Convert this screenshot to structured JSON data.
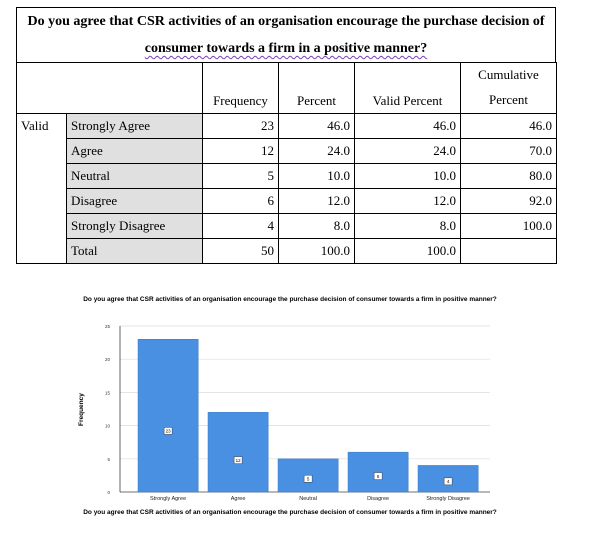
{
  "title": {
    "line1": "Do you agree that CSR activities of an organisation encourage the purchase decision of",
    "line2": "consumer towards a firm in a positive manner?"
  },
  "table": {
    "headers": {
      "frequency": "Frequency",
      "percent": "Percent",
      "valid_percent": "Valid Percent",
      "cumulative_line1": "Cumulative",
      "cumulative_line2": "Percent"
    },
    "valid_label": "Valid",
    "rows": [
      {
        "label": "Strongly Agree",
        "frequency": "23",
        "percent": "46.0",
        "valid_percent": "46.0",
        "cumulative": "46.0"
      },
      {
        "label": "Agree",
        "frequency": "12",
        "percent": "24.0",
        "valid_percent": "24.0",
        "cumulative": "70.0"
      },
      {
        "label": "Neutral",
        "frequency": "5",
        "percent": "10.0",
        "valid_percent": "10.0",
        "cumulative": "80.0"
      },
      {
        "label": "Disagree",
        "frequency": "6",
        "percent": "12.0",
        "valid_percent": "12.0",
        "cumulative": "92.0"
      },
      {
        "label": "Strongly Disagree",
        "frequency": "4",
        "percent": "8.0",
        "valid_percent": "8.0",
        "cumulative": "100.0"
      }
    ],
    "total": {
      "label": "Total",
      "frequency": "50",
      "percent": "100.0",
      "valid_percent": "100.0",
      "cumulative": ""
    }
  },
  "chart_data": {
    "type": "bar",
    "title": "Do you agree that CSR activities of an organisation encourage the purchase decision of consumer towards a firm in positive manner?",
    "xlabel": "Do you agree that CSR activities of an organisation encourage the purchase decision of consumer towards a firm in positive manner?",
    "ylabel": "Frequency",
    "categories": [
      "Strongly Agree",
      "Agree",
      "Neutral",
      "Disagree",
      "Strongly Disagree"
    ],
    "values": [
      23,
      12,
      5,
      6,
      4
    ],
    "data_labels": [
      "23",
      "12",
      "5",
      "6",
      "4"
    ],
    "yticks": [
      "0",
      "5",
      "10",
      "15",
      "20",
      "25"
    ],
    "ylim": [
      0,
      25
    ],
    "grid": true,
    "bar_color": "#4a90e2"
  }
}
